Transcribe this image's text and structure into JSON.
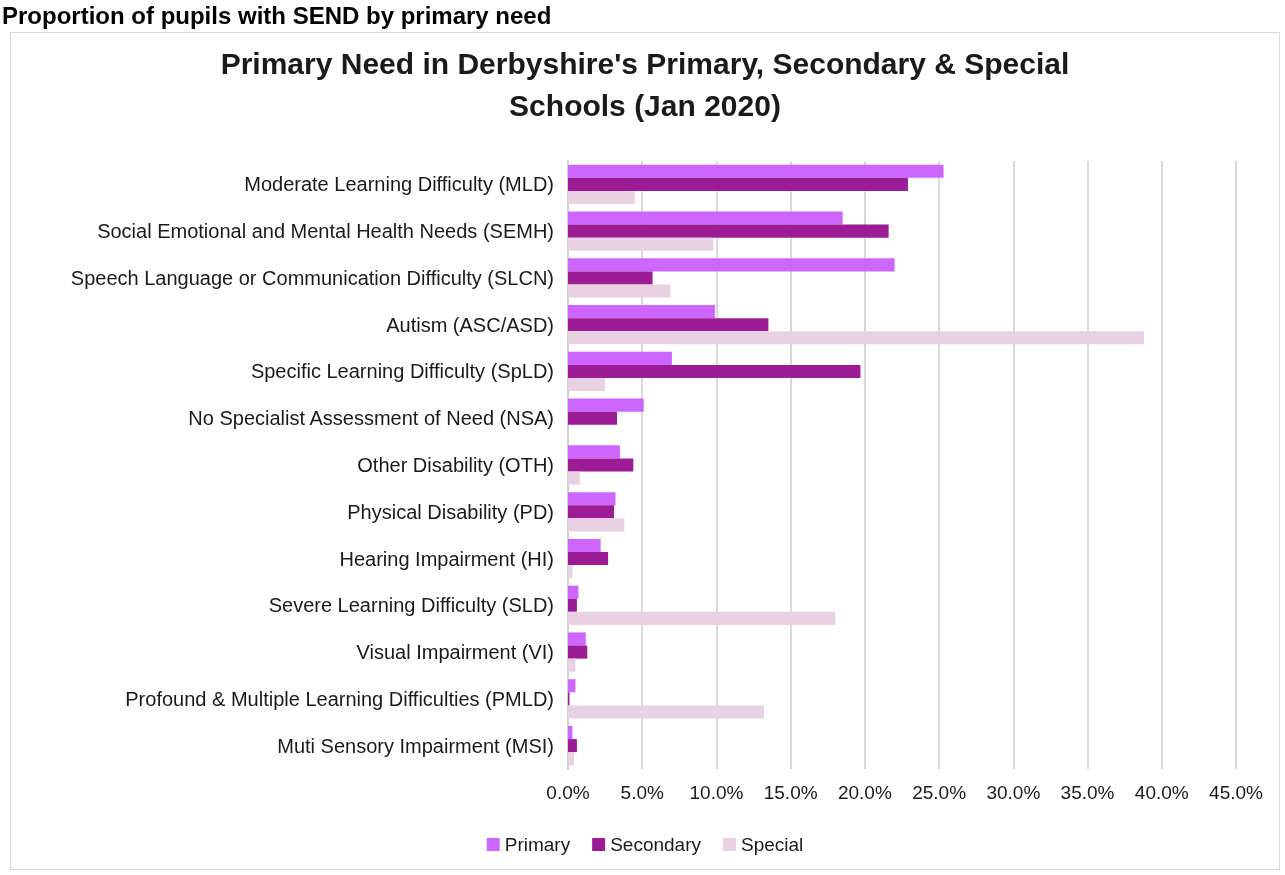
{
  "chart_data": {
    "type": "bar",
    "orientation": "horizontal",
    "title": "Primary Need in Derbyshire's Primary, Secondary & Special Schools (Jan 2020)",
    "annotations": [
      "Proportion of pupils with SEND by primary need"
    ],
    "categories": [
      "Moderate Learning Difficulty (MLD)",
      "Social Emotional and Mental Health Needs (SEMH)",
      "Speech Language or Communication Difficulty (SLCN)",
      "Autism (ASC/ASD)",
      "Specific Learning Difficulty (SpLD)",
      "No Specialist Assessment of Need (NSA)",
      "Other Disability (OTH)",
      "Physical Disability (PD)",
      "Hearing Impairment (HI)",
      "Severe Learning Difficulty (SLD)",
      "Visual Impairment (VI)",
      "Profound & Multiple Learning Difficulties (PMLD)",
      "Muti Sensory Impairment (MSI)"
    ],
    "series": [
      {
        "name": "Primary",
        "color": "#cc66ff",
        "values": [
          25.3,
          18.5,
          22.0,
          9.9,
          7.0,
          5.1,
          3.5,
          3.2,
          2.2,
          0.7,
          1.2,
          0.5,
          0.3
        ]
      },
      {
        "name": "Secondary",
        "color": "#9b1c94",
        "values": [
          22.9,
          21.6,
          5.7,
          13.5,
          19.7,
          3.3,
          4.4,
          3.1,
          2.7,
          0.6,
          1.3,
          0.1,
          0.6
        ]
      },
      {
        "name": "Special",
        "color": "#e8d1e3",
        "values": [
          4.5,
          9.8,
          6.9,
          38.8,
          2.5,
          null,
          0.8,
          3.8,
          0.3,
          18.0,
          0.5,
          13.2,
          0.4
        ]
      }
    ],
    "xlim": [
      0,
      45
    ],
    "xticks": [
      {
        "value": 0,
        "label": "0.0%"
      },
      {
        "value": 5,
        "label": "5.0%"
      },
      {
        "value": 10,
        "label": "10.0%"
      },
      {
        "value": 15,
        "label": "15.0%"
      },
      {
        "value": 20,
        "label": "20.0%"
      },
      {
        "value": 25,
        "label": "25.0%"
      },
      {
        "value": 30,
        "label": "30.0%"
      },
      {
        "value": 35,
        "label": "35.0%"
      },
      {
        "value": 40,
        "label": "40.0%"
      },
      {
        "value": 45,
        "label": "45.0%"
      }
    ],
    "grid": "x",
    "legend": "bottom"
  }
}
